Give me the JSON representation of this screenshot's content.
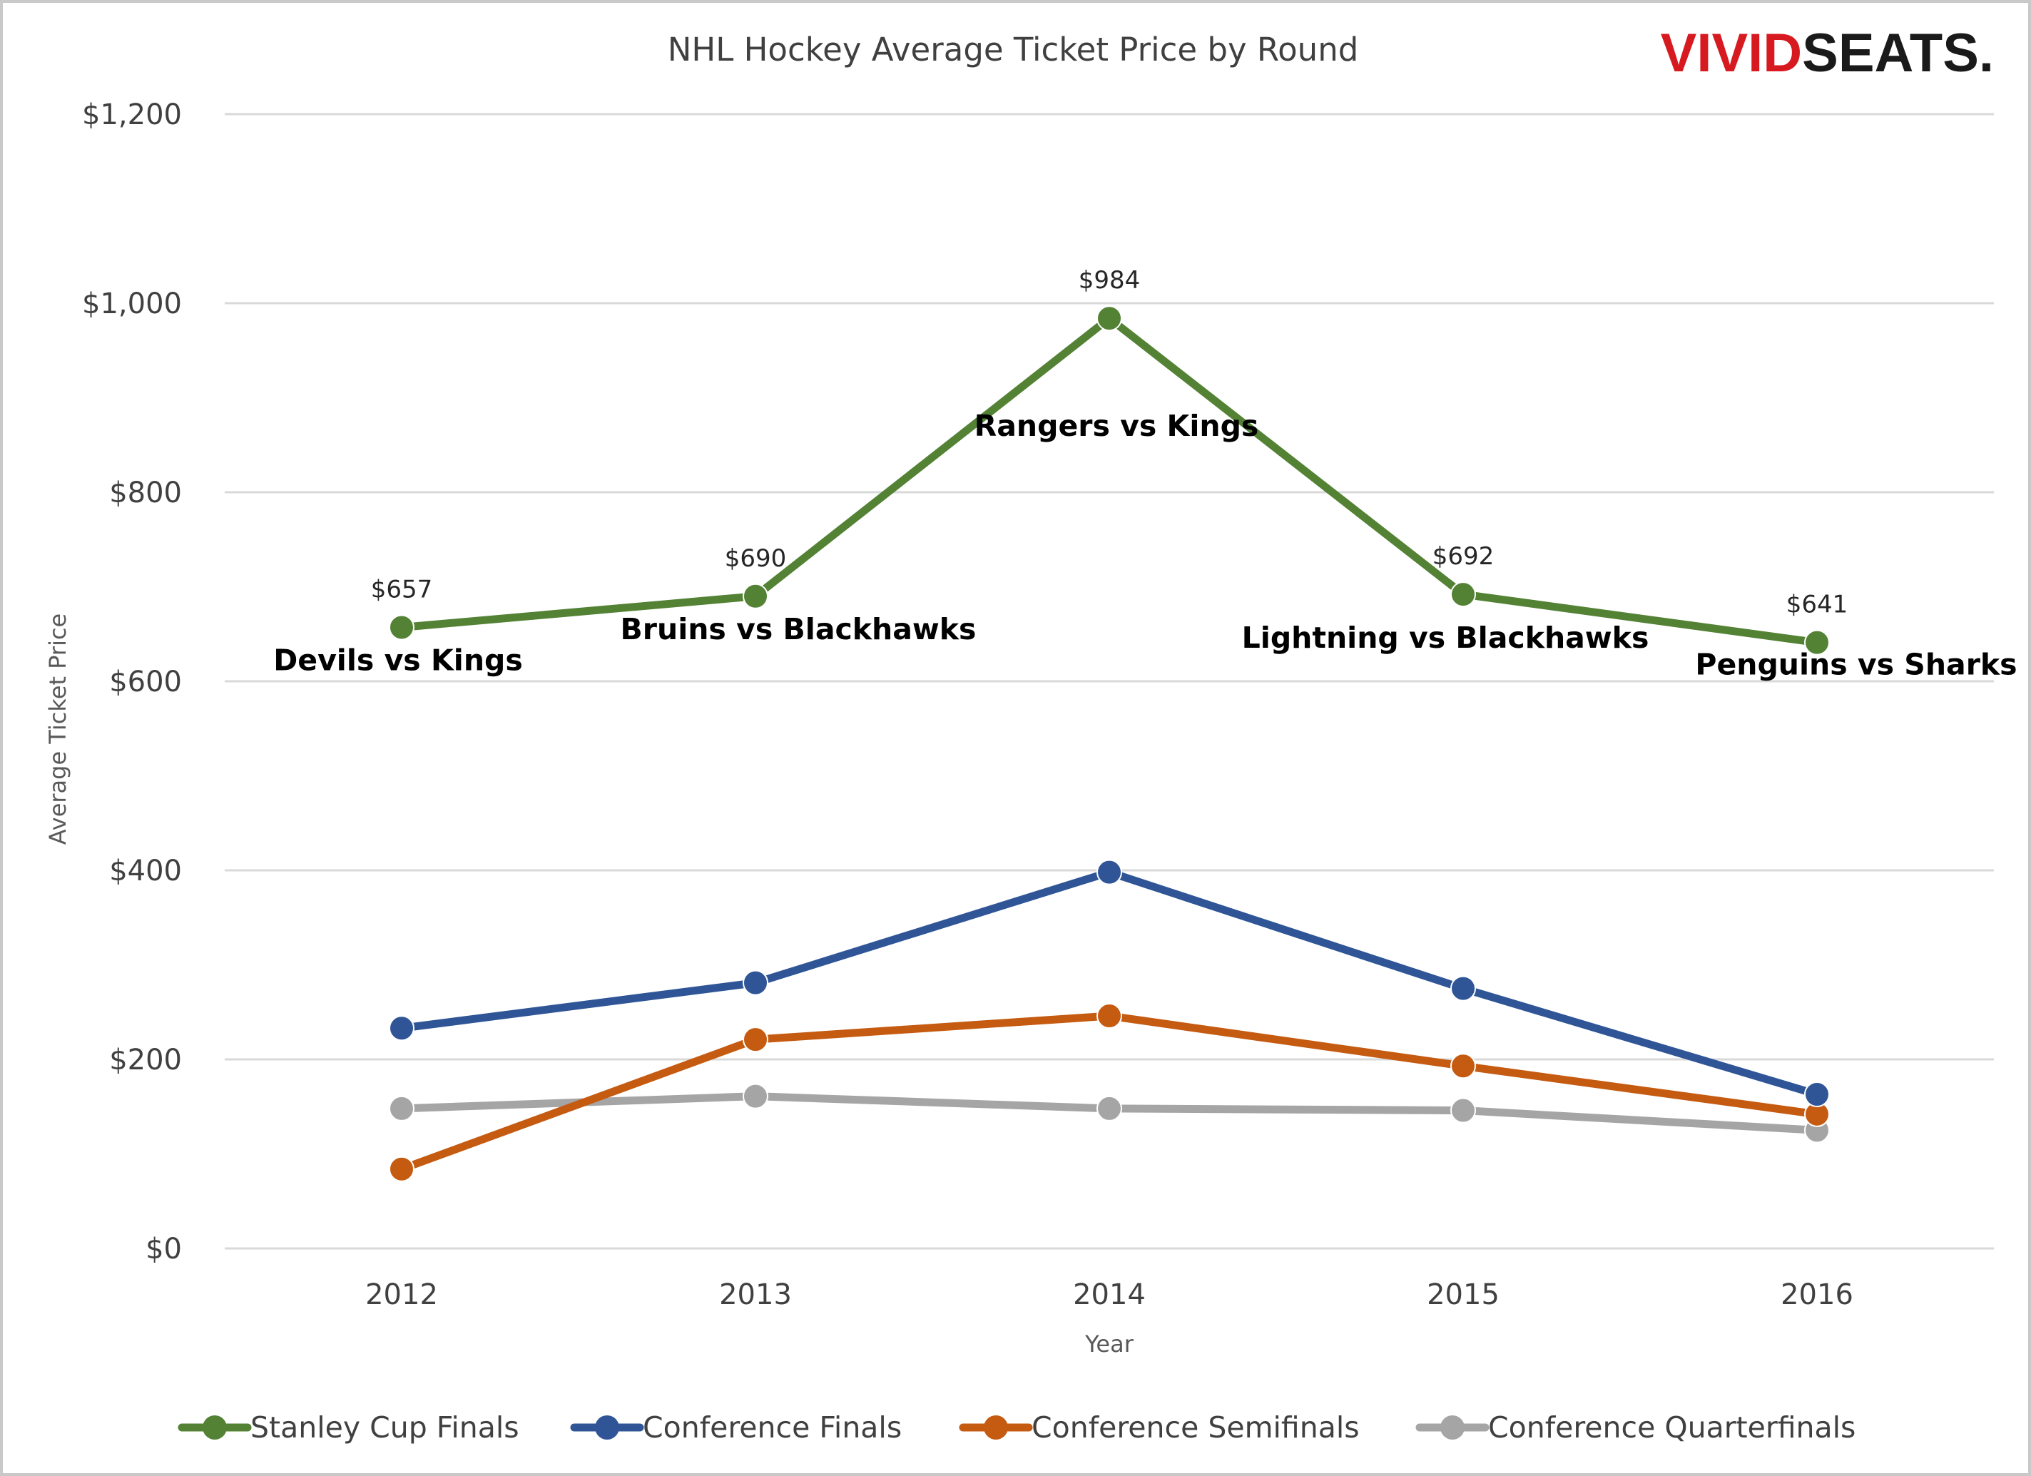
{
  "logo": {
    "part1": "VIVID",
    "part2": "SEATS."
  },
  "chart_data": {
    "type": "line",
    "title": "NHL Hockey Average Ticket Price by Round",
    "xlabel": "Year",
    "ylabel": "Average Ticket Price",
    "categories": [
      "2012",
      "2013",
      "2014",
      "2015",
      "2016"
    ],
    "ylim": [
      0,
      1200
    ],
    "yticks": [
      0,
      200,
      400,
      600,
      800,
      1000,
      1200
    ],
    "ytick_labels": [
      "$0",
      "$200",
      "$400",
      "$600",
      "$800",
      "$1,000",
      "$1,200"
    ],
    "grid": true,
    "legend_position": "bottom",
    "series": [
      {
        "name": "Stanley Cup Finals",
        "color": "#548235",
        "values": [
          657,
          690,
          984,
          692,
          641
        ],
        "data_labels": [
          "$657",
          "$690",
          "$984",
          "$692",
          "$641"
        ],
        "matchups": [
          "Devils vs Kings",
          "Bruins vs Blackhawks",
          "Rangers vs Kings",
          "Lightning vs Blackhawks",
          "Penguins vs Sharks"
        ]
      },
      {
        "name": "Conference Finals",
        "color": "#2f5597",
        "values": [
          233,
          281,
          398,
          275,
          163
        ]
      },
      {
        "name": "Conference Semifinals",
        "color": "#c55a11",
        "values": [
          84,
          221,
          246,
          193,
          142
        ]
      },
      {
        "name": "Conference Quarterfinals",
        "color": "#a5a5a5",
        "values": [
          148,
          161,
          148,
          146,
          125
        ]
      }
    ]
  }
}
